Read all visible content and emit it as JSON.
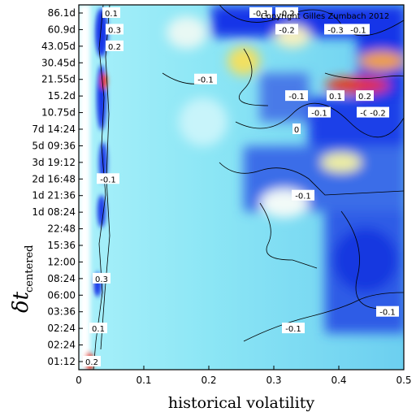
{
  "chart_data": {
    "type": "heatmap",
    "xlabel": "historical volatility",
    "ylabel_main": "δt",
    "ylabel_sub": "centered",
    "copyright": "Copyright Gilles Zumbach 2012",
    "xlim": [
      0,
      0.5
    ],
    "x_ticks": [
      "0",
      "0.1",
      "0.2",
      "0.3",
      "0.4",
      "0.5"
    ],
    "y_ticks": [
      "86.1d",
      "60.9d",
      "43.05d",
      "30.45d",
      "21.55d",
      "15.2d",
      "10.75d",
      "7d 14:24",
      "5d 09:36",
      "3d 19:12",
      "2d 16:48",
      "1d 21:36",
      "1d 08:24",
      "22:48",
      "15:36",
      "12:00",
      "08:24",
      "06:00",
      "03:36",
      "02:24",
      "02:24",
      "01:12"
    ],
    "grid": false,
    "legend": "none",
    "contour_labels": [
      {
        "text": "0.1",
        "x": 0.05,
        "y": "86.1d"
      },
      {
        "text": "0.3",
        "x": 0.055,
        "y": "60.9d"
      },
      {
        "text": "0.2",
        "x": 0.055,
        "y": "43.05d"
      },
      {
        "text": "-0.1",
        "x": 0.28,
        "y": "86.1d"
      },
      {
        "text": "-0.2",
        "x": 0.32,
        "y": "86.1d"
      },
      {
        "text": "-0.2",
        "x": 0.32,
        "y": "60.9d"
      },
      {
        "text": "-0.3",
        "x": 0.395,
        "y": "60.9d"
      },
      {
        "text": "-0.1",
        "x": 0.43,
        "y": "60.9d"
      },
      {
        "text": "-0.1",
        "x": 0.195,
        "y": "21.55d"
      },
      {
        "text": "-0.1",
        "x": 0.335,
        "y": "15.2d"
      },
      {
        "text": "-0.1",
        "x": 0.37,
        "y": "10.75d"
      },
      {
        "text": "0.1",
        "x": 0.395,
        "y": "15.2d"
      },
      {
        "text": "0.2",
        "x": 0.44,
        "y": "15.2d"
      },
      {
        "text": "-0.1",
        "x": 0.445,
        "y": "10.75d"
      },
      {
        "text": "-0.2",
        "x": 0.46,
        "y": "10.75d"
      },
      {
        "text": "0",
        "x": 0.335,
        "y": "7d 14:24"
      },
      {
        "text": "-0.1",
        "x": 0.045,
        "y": "2d 16:48"
      },
      {
        "text": "-0.1",
        "x": 0.345,
        "y": "1d 21:36"
      },
      {
        "text": "0.3",
        "x": 0.035,
        "y": "08:24"
      },
      {
        "text": "-0.1",
        "x": 0.475,
        "y": "03:36"
      },
      {
        "text": "0.1",
        "x": 0.03,
        "y": "02:24"
      },
      {
        "text": "-0.1",
        "x": 0.33,
        "y": "02:24"
      },
      {
        "text": "0.2",
        "x": 0.02,
        "y": "01:12"
      }
    ],
    "colors": {
      "background": "#8ee8f5",
      "low": "#1535e8",
      "mid": "#f0f6e8",
      "high_warm": "#f4e26a",
      "hot": "#e83018"
    }
  }
}
